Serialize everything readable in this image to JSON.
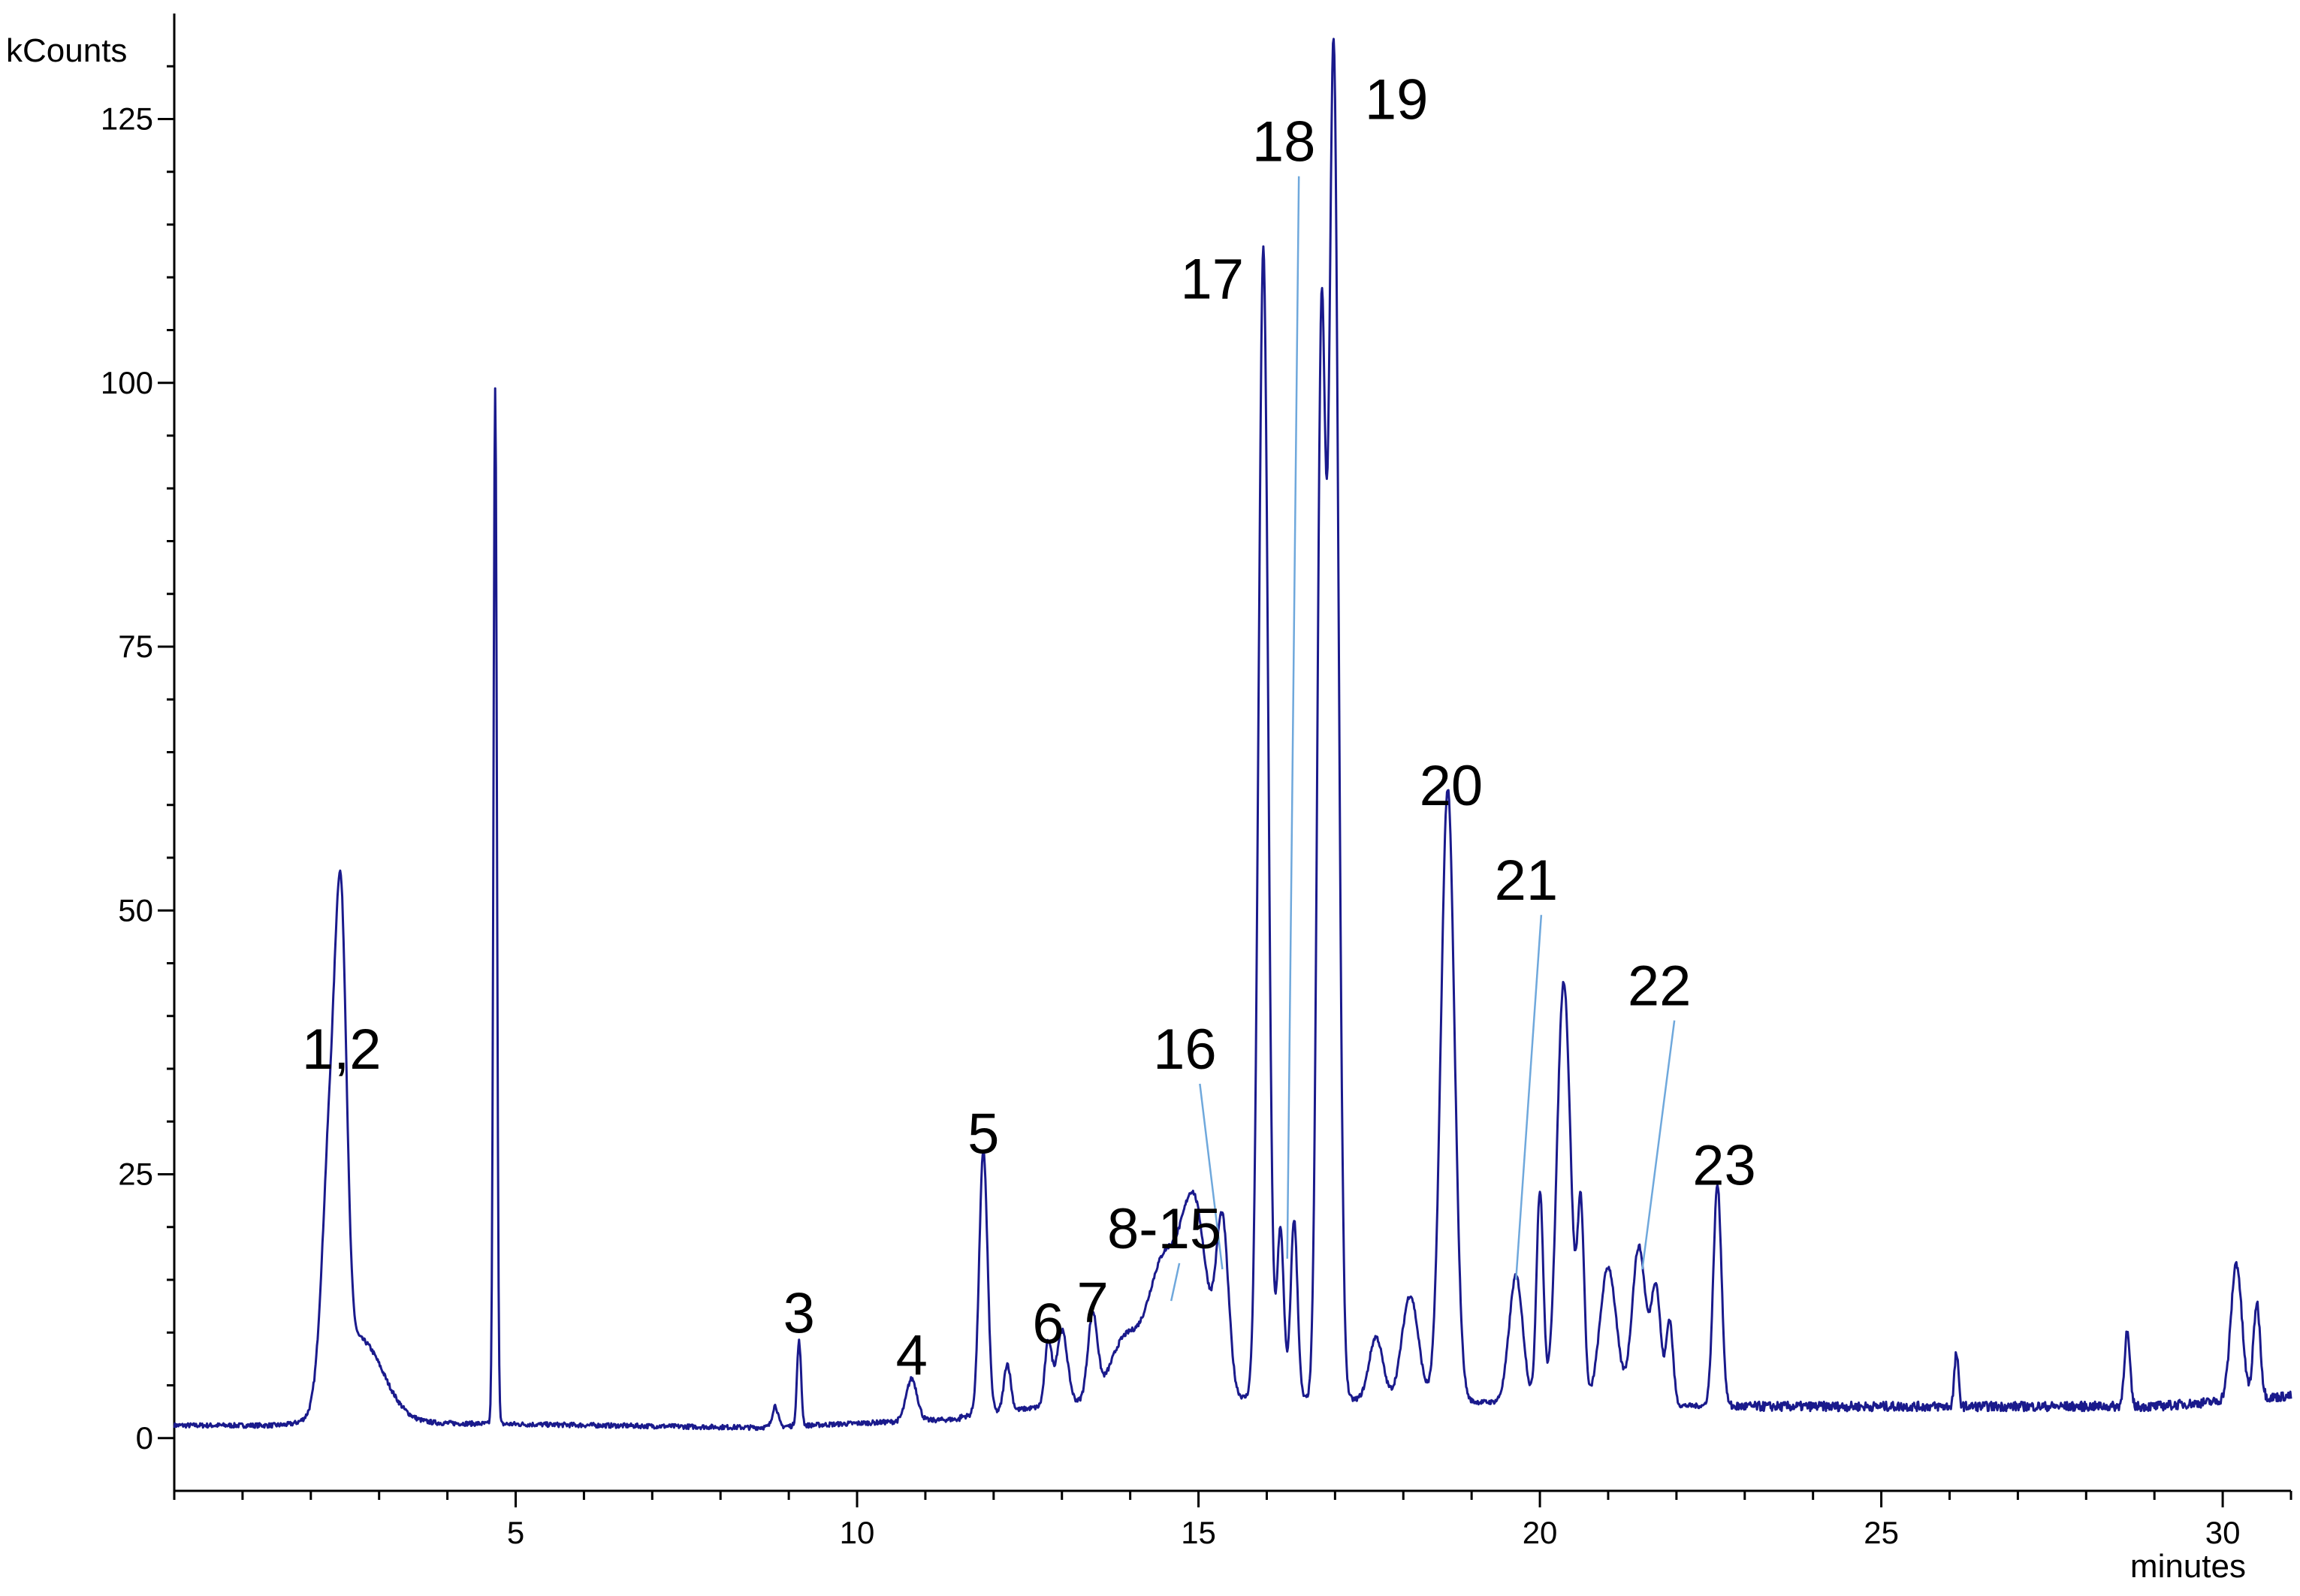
{
  "chart_data": {
    "type": "line",
    "ylabel": "kCounts",
    "xlabel": "minutes",
    "xlim": [
      0,
      31
    ],
    "ylim": [
      -5,
      135
    ],
    "x_ticks": [
      5,
      10,
      15,
      20,
      25,
      30
    ],
    "y_ticks": [
      0,
      25,
      50,
      75,
      100,
      125
    ],
    "grid": false,
    "line_color": "#1a1a8c",
    "leader_color": "#6fa8dc",
    "baseline_segments": [
      {
        "x": [
          0,
          2.0
        ],
        "y": [
          1.2,
          1.2
        ]
      },
      {
        "x": [
          3.0,
          8.5
        ],
        "y": [
          1.5,
          1.0
        ]
      },
      {
        "x": [
          8.5,
          11.5
        ],
        "y": [
          1.0,
          1.8
        ]
      },
      {
        "x": [
          11.5,
          14.0
        ],
        "y": [
          2.0,
          4.0
        ]
      },
      {
        "x": [
          22.8,
          29.0
        ],
        "y": [
          3.0,
          3.0
        ]
      },
      {
        "x": [
          29.0,
          31.0
        ],
        "y": [
          3.0,
          4.0
        ]
      }
    ],
    "peaks": [
      {
        "rt": 2.3,
        "height": 26,
        "width": 0.12
      },
      {
        "rt": 2.45,
        "height": 33,
        "width": 0.08
      },
      {
        "rt": 2.7,
        "height": 8,
        "width": 0.35
      },
      {
        "rt": 4.7,
        "height": 98,
        "width": 0.025
      },
      {
        "rt": 8.8,
        "height": 2,
        "width": 0.04
      },
      {
        "rt": 9.15,
        "height": 8,
        "width": 0.03
      },
      {
        "rt": 10.8,
        "height": 4,
        "width": 0.08
      },
      {
        "rt": 11.85,
        "height": 25,
        "width": 0.06
      },
      {
        "rt": 12.2,
        "height": 4.5,
        "width": 0.05
      },
      {
        "rt": 12.8,
        "height": 6,
        "width": 0.05
      },
      {
        "rt": 13.0,
        "height": 7,
        "width": 0.08
      },
      {
        "rt": 13.45,
        "height": 8,
        "width": 0.07
      },
      {
        "rt": 13.9,
        "height": 5,
        "width": 0.2
      },
      {
        "rt": 14.5,
        "height": 13,
        "width": 0.25
      },
      {
        "rt": 14.95,
        "height": 16.5,
        "width": 0.18
      },
      {
        "rt": 15.35,
        "height": 16,
        "width": 0.09
      },
      {
        "rt": 15.95,
        "height": 109,
        "width": 0.07
      },
      {
        "rt": 16.2,
        "height": 16,
        "width": 0.05
      },
      {
        "rt": 16.4,
        "height": 17,
        "width": 0.05
      },
      {
        "rt": 16.8,
        "height": 100,
        "width": 0.06
      },
      {
        "rt": 16.98,
        "height": 128,
        "width": 0.07
      },
      {
        "rt": 17.6,
        "height": 6,
        "width": 0.1
      },
      {
        "rt": 18.1,
        "height": 10,
        "width": 0.12
      },
      {
        "rt": 18.65,
        "height": 58,
        "width": 0.1
      },
      {
        "rt": 19.65,
        "height": 12,
        "width": 0.1
      },
      {
        "rt": 20.0,
        "height": 20,
        "width": 0.05
      },
      {
        "rt": 20.35,
        "height": 40,
        "width": 0.1
      },
      {
        "rt": 20.6,
        "height": 18,
        "width": 0.05
      },
      {
        "rt": 21.0,
        "height": 13,
        "width": 0.12
      },
      {
        "rt": 21.45,
        "height": 15,
        "width": 0.1
      },
      {
        "rt": 21.7,
        "height": 11,
        "width": 0.07
      },
      {
        "rt": 21.9,
        "height": 8,
        "width": 0.05
      },
      {
        "rt": 22.6,
        "height": 21,
        "width": 0.06
      },
      {
        "rt": 26.1,
        "height": 5,
        "width": 0.03
      },
      {
        "rt": 28.6,
        "height": 7,
        "width": 0.04
      },
      {
        "rt": 30.2,
        "height": 13,
        "width": 0.08
      },
      {
        "rt": 30.5,
        "height": 9,
        "width": 0.05
      }
    ],
    "annotations": [
      {
        "text": "1,2",
        "x": 2.45,
        "y": 35
      },
      {
        "text": "3",
        "x": 9.15,
        "y": 10
      },
      {
        "text": "4",
        "x": 10.8,
        "y": 6
      },
      {
        "text": "5",
        "x": 11.85,
        "y": 27
      },
      {
        "text": "6",
        "x": 12.8,
        "y": 9
      },
      {
        "text": "7",
        "x": 13.45,
        "y": 11
      },
      {
        "text": "8-15",
        "x": 14.5,
        "y": 18,
        "leader_to": [
          14.6,
          13
        ]
      },
      {
        "text": "16",
        "x": 14.8,
        "y": 35,
        "leader_to": [
          15.35,
          16
        ]
      },
      {
        "text": "17",
        "x": 15.2,
        "y": 108
      },
      {
        "text": "18",
        "x": 16.25,
        "y": 121,
        "leader_to": [
          16.3,
          17
        ]
      },
      {
        "text": "19",
        "x": 17.9,
        "y": 125
      },
      {
        "text": "20",
        "x": 18.7,
        "y": 60
      },
      {
        "text": "21",
        "x": 19.8,
        "y": 51,
        "leader_to": [
          19.65,
          15
        ]
      },
      {
        "text": "22",
        "x": 21.75,
        "y": 41,
        "leader_to": [
          21.5,
          16
        ]
      },
      {
        "text": "23",
        "x": 22.7,
        "y": 24
      }
    ]
  }
}
